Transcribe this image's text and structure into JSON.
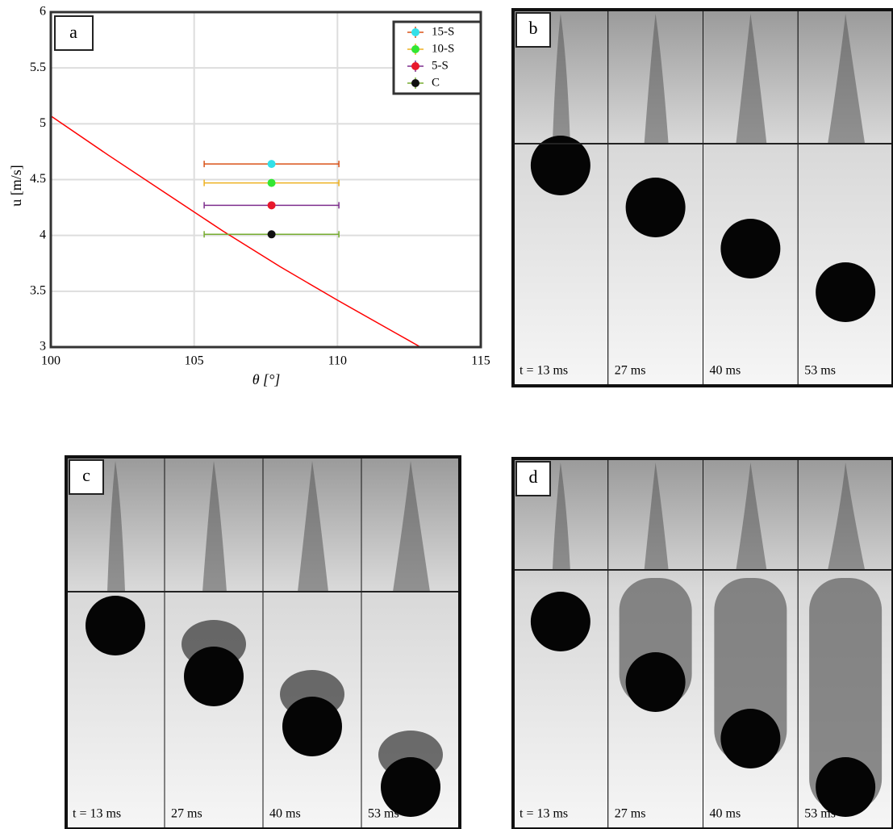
{
  "chart_data": {
    "type": "errorbar",
    "panel_label": "a",
    "x_label": "θ [°]",
    "y_label": "u [m/s]",
    "xlim": [
      100,
      115
    ],
    "xticks": [
      100,
      105,
      110,
      115
    ],
    "ylim": [
      3,
      6
    ],
    "yticks": [
      3,
      3.5,
      4,
      4.5,
      5,
      5.5,
      6
    ],
    "grid": true,
    "legend": "upper right",
    "curve": {
      "color": "#ff0000",
      "x": [
        100,
        102,
        104,
        106,
        108,
        110,
        112,
        112.9
      ],
      "values": [
        5.07,
        4.72,
        4.38,
        4.04,
        3.72,
        3.42,
        3.13,
        3.0
      ]
    },
    "series": [
      {
        "name": "15-S",
        "color": "#33e0e8",
        "error_color": "#d95319",
        "x": [
          107.7
        ],
        "values": [
          4.64
        ],
        "xerr": [
          2.35
        ]
      },
      {
        "name": "10-S",
        "color": "#33e633",
        "error_color": "#edb120",
        "x": [
          107.7
        ],
        "values": [
          4.47
        ],
        "xerr": [
          2.35
        ]
      },
      {
        "name": "5-S",
        "color": "#e8182c",
        "error_color": "#7e2f8e",
        "x": [
          107.7
        ],
        "values": [
          4.27
        ],
        "xerr": [
          2.35
        ]
      },
      {
        "name": "C",
        "color": "#111111",
        "error_color": "#77ac30",
        "x": [
          107.7
        ],
        "values": [
          4.01
        ],
        "xerr": [
          2.35
        ]
      }
    ]
  },
  "panels": [
    {
      "label": "b",
      "frames": [
        "t = 13 ms",
        "27 ms",
        "40 ms",
        "53 ms"
      ]
    },
    {
      "label": "c",
      "frames": [
        "t = 13 ms",
        "27 ms",
        "40 ms",
        "53 ms"
      ]
    },
    {
      "label": "d",
      "frames": [
        "t = 13 ms",
        "27 ms",
        "40 ms",
        "53 ms"
      ]
    }
  ]
}
